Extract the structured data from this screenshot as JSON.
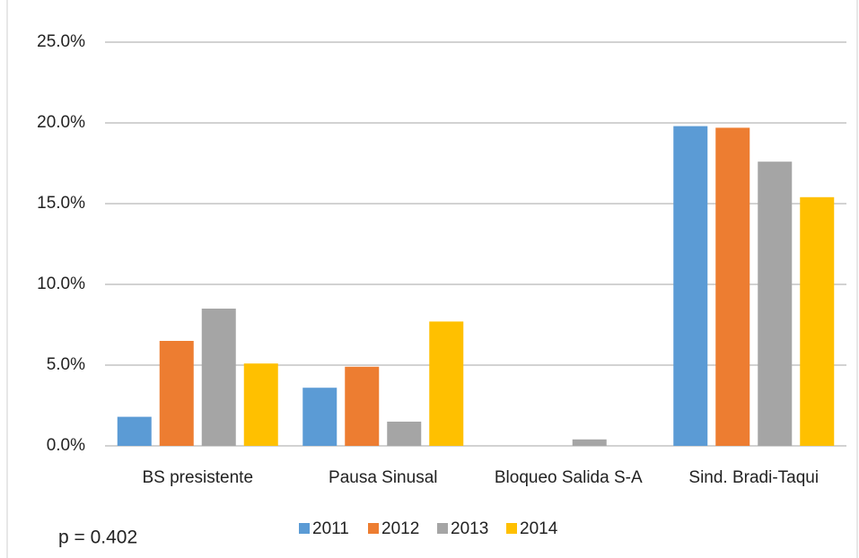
{
  "chart_data": {
    "type": "bar",
    "categories": [
      "BS presistente",
      "Pausa Sinusal",
      "Bloqueo Salida S-A",
      "Sind. Bradi-Taqui"
    ],
    "series": [
      {
        "name": "2011",
        "color": "#5b9bd5",
        "values": [
          1.8,
          3.6,
          0,
          19.8
        ]
      },
      {
        "name": "2012",
        "color": "#ed7d31",
        "values": [
          6.5,
          4.9,
          0,
          19.7
        ]
      },
      {
        "name": "2013",
        "color": "#a5a5a5",
        "values": [
          8.5,
          1.5,
          0.4,
          17.6
        ]
      },
      {
        "name": "2014",
        "color": "#ffc000",
        "values": [
          5.1,
          7.7,
          0,
          15.4
        ]
      }
    ],
    "ylim": [
      0,
      25
    ],
    "yticks": [
      {
        "value": 0,
        "label": "0.0%"
      },
      {
        "value": 5,
        "label": "5.0%"
      },
      {
        "value": 10,
        "label": "10.0%"
      },
      {
        "value": 15,
        "label": "15.0%"
      },
      {
        "value": 20,
        "label": "20.0%"
      },
      {
        "value": 25,
        "label": "25.0%"
      }
    ],
    "grid": true,
    "legend": "bottom",
    "annotation": "p = 0.402"
  }
}
